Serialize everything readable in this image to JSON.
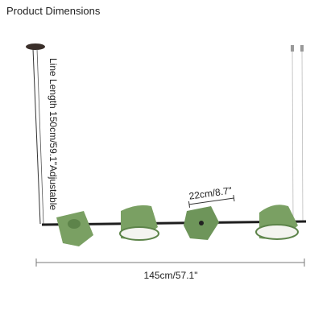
{
  "header": {
    "title": "Product Dimensions"
  },
  "dimensions": {
    "line_length": "Line Length 150cm/59.1\"Adjustable",
    "shade_width": "22cm/8.7\"",
    "total_length": "145cm/57.1\""
  }
}
